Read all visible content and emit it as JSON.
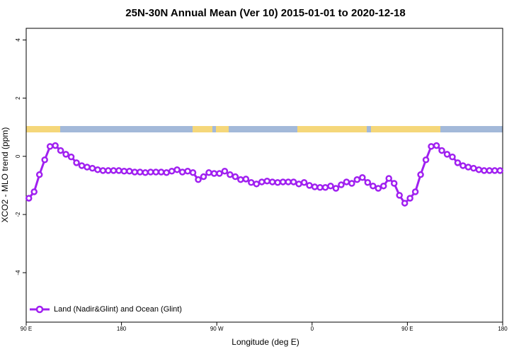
{
  "chart_data": {
    "type": "line",
    "title": "25N-30N Annual Mean (Ver 10)   2015-01-01 to 2020-12-18",
    "xlabel": "Longitude (deg E)",
    "ylabel": "XCO2 - MLO trend (ppm)",
    "xlim": [
      90,
      540
    ],
    "ylim": [
      -5.7,
      4.4
    ],
    "xticks": [
      {
        "value": 90,
        "label": "90 E"
      },
      180,
      {
        "value": 270,
        "label": "90 W"
      },
      {
        "value": 360,
        "label": "0"
      },
      {
        "value": 450,
        "label": "90 E"
      },
      {
        "value": 540,
        "label": "180"
      }
    ],
    "yticks": [
      -4,
      -2,
      0,
      2,
      4
    ],
    "legend": "bottom-left",
    "x": [
      92.5,
      97.5,
      102.5,
      107.5,
      112.5,
      117.5,
      122.5,
      127.5,
      132.5,
      137.5,
      142.5,
      147.5,
      152.5,
      157.5,
      162.5,
      167.5,
      172.5,
      177.5,
      182.5,
      187.5,
      192.5,
      197.5,
      202.5,
      207.5,
      212.5,
      217.5,
      222.5,
      227.5,
      232.5,
      237.5,
      242.5,
      247.5,
      252.5,
      257.5,
      262.5,
      267.5,
      272.5,
      277.5,
      282.5,
      287.5,
      292.5,
      297.5,
      302.5,
      307.5,
      312.5,
      317.5,
      322.5,
      327.5,
      332.5,
      337.5,
      342.5,
      347.5,
      352.5,
      357.5,
      362.5,
      367.5,
      372.5,
      377.5,
      382.5,
      387.5,
      392.5,
      397.5,
      402.5,
      407.5,
      412.5,
      417.5,
      422.5,
      427.5,
      432.5,
      437.5,
      442.5,
      447.5,
      452.5,
      457.5,
      462.5,
      467.5,
      472.5,
      477.5,
      482.5,
      487.5,
      492.5,
      497.5,
      502.5,
      507.5,
      512.5,
      517.5,
      522.5,
      527.5,
      532.5,
      537.5
    ],
    "series": [
      {
        "name": "Land (Nadir&Glint) and Ocean (Glint)",
        "color": "#a020f0",
        "values": [
          -1.44,
          -1.22,
          -0.63,
          -0.12,
          0.34,
          0.37,
          0.2,
          0.07,
          -0.02,
          -0.22,
          -0.32,
          -0.37,
          -0.41,
          -0.46,
          -0.49,
          -0.49,
          -0.49,
          -0.49,
          -0.51,
          -0.51,
          -0.54,
          -0.54,
          -0.56,
          -0.54,
          -0.54,
          -0.54,
          -0.56,
          -0.51,
          -0.46,
          -0.54,
          -0.51,
          -0.56,
          -0.8,
          -0.7,
          -0.56,
          -0.59,
          -0.59,
          -0.51,
          -0.63,
          -0.7,
          -0.8,
          -0.78,
          -0.9,
          -0.95,
          -0.88,
          -0.85,
          -0.88,
          -0.9,
          -0.88,
          -0.88,
          -0.88,
          -0.95,
          -0.9,
          -1.0,
          -1.05,
          -1.07,
          -1.07,
          -1.02,
          -1.1,
          -0.98,
          -0.88,
          -0.93,
          -0.8,
          -0.73,
          -0.9,
          -1.02,
          -1.1,
          -1.02,
          -0.76,
          -0.93,
          -1.34,
          -1.61,
          -1.44,
          -1.22,
          -0.63,
          -0.12,
          0.34,
          0.37,
          0.2,
          0.07,
          -0.02,
          -0.22,
          -0.32,
          -0.37,
          -0.41,
          -0.46,
          -0.49,
          -0.49,
          -0.49,
          -0.49
        ]
      }
    ]
  }
}
